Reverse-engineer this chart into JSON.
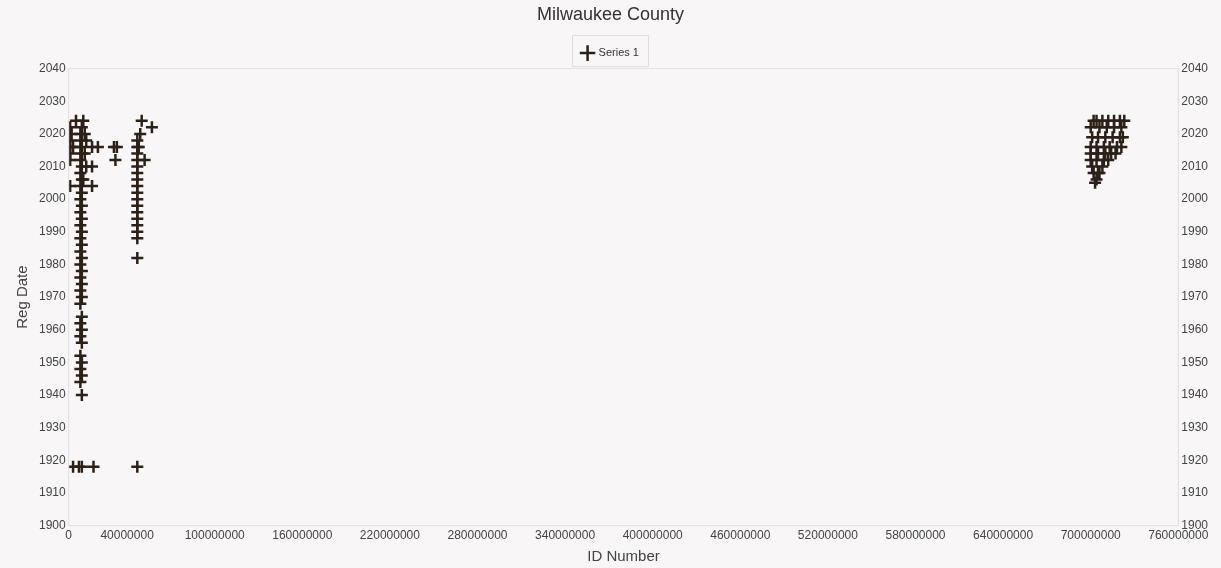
{
  "chart_data": {
    "type": "scatter",
    "title": "Milwaukee County",
    "xlabel": "ID Number",
    "ylabel": "Reg Date",
    "series": [
      {
        "name": "Series 1",
        "color": "#2b2118",
        "x": [
          9000000,
          8000000,
          9000000,
          8000000,
          9000000,
          8000000,
          9000000,
          8000000,
          9000000,
          8000000,
          9000000,
          8000000,
          9000000,
          8000000,
          9000000,
          8000000,
          9000000,
          8000000,
          9000000,
          8000000,
          9000000,
          8000000,
          9000000,
          8000000,
          9000000,
          8000000,
          9000000,
          8000000,
          9000000,
          8000000,
          9000000,
          8000000,
          9000000,
          8000000,
          9000000,
          8000000,
          9000000,
          8000000,
          9000000,
          10000000,
          11000000,
          12000000,
          11000000,
          12000000,
          10000000,
          1000000,
          1000000,
          1000000,
          1000000,
          1000000,
          1000000,
          2000000,
          3000000,
          5000000,
          16000000,
          16000000,
          16000000,
          20000000,
          3000000,
          7000000,
          9000000,
          17000000,
          31000000,
          33000000,
          32000000,
          47000000,
          47000000,
          47000000,
          47000000,
          47000000,
          47000000,
          47000000,
          47000000,
          47000000,
          47000000,
          47000000,
          47000000,
          47000000,
          47000000,
          47000000,
          47000000,
          47000000,
          47000000,
          49000000,
          50000000,
          48000000,
          52000000,
          57000000,
          702000000,
          703000000,
          704000000,
          702000000,
          706000000,
          705000000,
          708000000,
          701000000,
          704000000,
          709000000,
          712000000,
          700000000,
          705000000,
          710000000,
          714000000,
          717000000,
          700000000,
          704000000,
          709000000,
          713000000,
          718000000,
          721000000,
          700000000,
          705000000,
          710000000,
          715000000,
          720000000,
          722000000,
          701000000,
          706000000,
          711000000,
          716000000,
          721000000,
          700000000,
          704000000,
          708000000,
          712000000,
          716000000,
          720000000,
          723000000
        ],
        "values": [
          1940,
          1944,
          1946,
          1948,
          1950,
          1952,
          1956,
          1958,
          1960,
          1962,
          1964,
          1968,
          1970,
          1972,
          1974,
          1976,
          1978,
          1980,
          1982,
          1984,
          1986,
          1988,
          1990,
          1992,
          1994,
          1996,
          1998,
          2000,
          2002,
          2004,
          2006,
          2008,
          2010,
          2012,
          2014,
          2016,
          2018,
          2020,
          2022,
          2024,
          2020,
          2018,
          2014,
          2010,
          2006,
          2004,
          2012,
          2014,
          2016,
          2018,
          2022,
          2020,
          2016,
          2024,
          2016,
          2004,
          2010,
          2016,
          1918,
          1918,
          1918,
          1918,
          2016,
          2016,
          2012,
          1918,
          1982,
          1988,
          1990,
          1992,
          1994,
          1996,
          1998,
          2000,
          2002,
          2004,
          2006,
          2008,
          2010,
          2012,
          2014,
          2016,
          2018,
          2020,
          2024,
          2016,
          2012,
          2022,
          2024,
          2005,
          2006,
          2008,
          2008,
          2008,
          2010,
          2010,
          2012,
          2012,
          2012,
          2012,
          2014,
          2014,
          2014,
          2014,
          2014,
          2016,
          2016,
          2016,
          2016,
          2016,
          2016,
          2019,
          2019,
          2019,
          2019,
          2019,
          2019,
          2022,
          2022,
          2022,
          2022,
          2022,
          2024,
          2024,
          2024,
          2024,
          2024,
          2024
        ]
      }
    ],
    "xlim": [
      0,
      760000000
    ],
    "xticks": [
      0,
      40000000,
      100000000,
      160000000,
      220000000,
      280000000,
      340000000,
      400000000,
      460000000,
      520000000,
      580000000,
      640000000,
      700000000,
      760000000
    ],
    "ylim": [
      1900,
      2040
    ],
    "yticks": [
      1900,
      1910,
      1920,
      1930,
      1940,
      1950,
      1960,
      1970,
      1980,
      1990,
      2000,
      2010,
      2020,
      2030,
      2040
    ],
    "y2lim": [
      1900,
      2040
    ],
    "y2ticks": [
      1900,
      1910,
      1920,
      1930,
      1940,
      1950,
      1960,
      1970,
      1980,
      1990,
      2000,
      2010,
      2020,
      2030,
      2040
    ],
    "legend": "top",
    "marker": "cross",
    "grid": false
  }
}
